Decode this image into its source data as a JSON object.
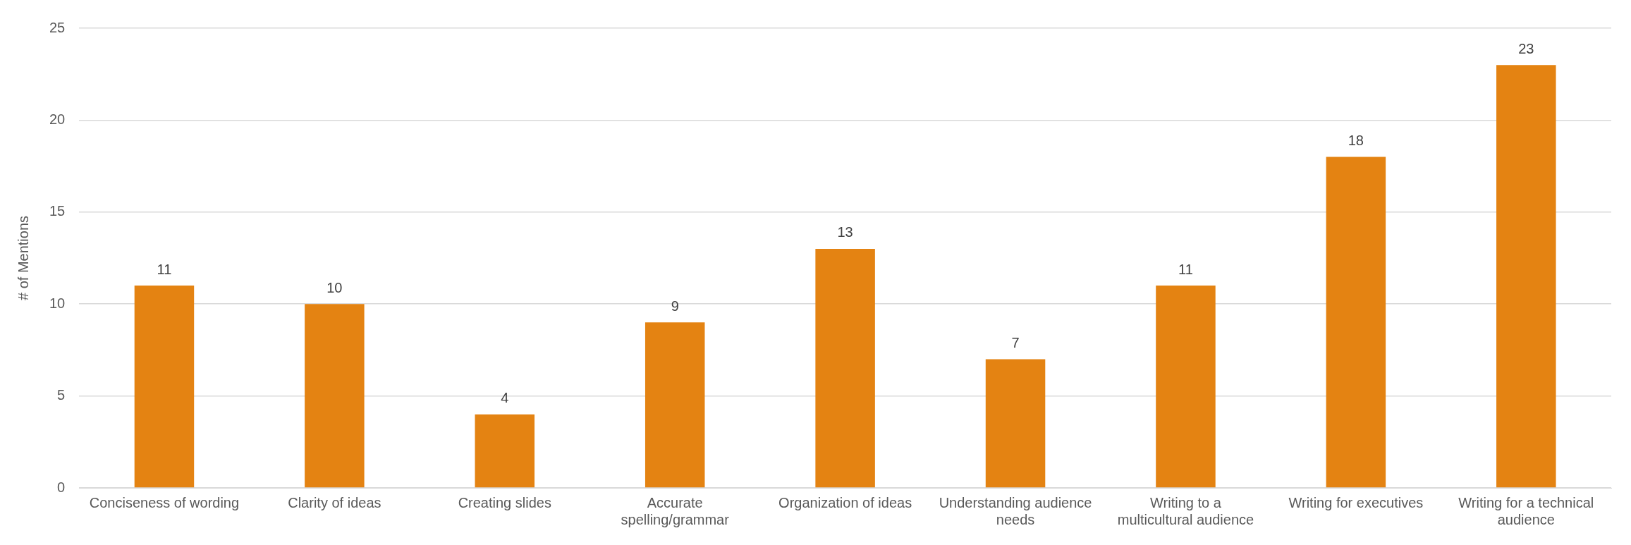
{
  "chart_data": {
    "type": "bar",
    "ylabel": "# of Mentions",
    "categories": [
      "Conciseness of wording",
      "Clarity of ideas",
      "Creating slides",
      "Accurate spelling/grammar",
      "Organization of ideas",
      "Understanding audience needs",
      "Writing to a multicultural audience",
      "Writing for executives",
      "Writing for a technical audience"
    ],
    "values": [
      11,
      10,
      4,
      9,
      13,
      7,
      11,
      18,
      23
    ],
    "color": "#e48312",
    "ylim": [
      0,
      25
    ],
    "yticks": [
      0,
      5,
      10,
      15,
      20,
      25
    ],
    "grid": "y",
    "data_labels": true,
    "legend": false
  }
}
